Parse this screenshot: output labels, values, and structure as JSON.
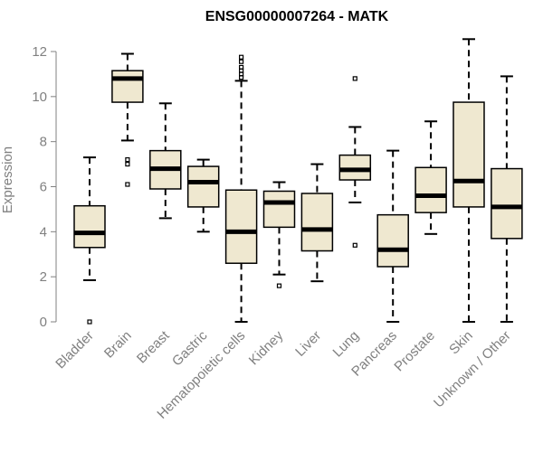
{
  "chart_data": {
    "type": "boxplot",
    "title": "ENSG00000007264 - MATK",
    "xlabel": "",
    "ylabel": "Expression",
    "ylim": [
      0,
      12
    ],
    "yticks": [
      0,
      2,
      4,
      6,
      8,
      10,
      12
    ],
    "grid": false,
    "colors": {
      "box_fill": "#efe8d0",
      "box_stroke": "#000000",
      "axis": "#808080",
      "title": "#000000"
    },
    "categories": [
      "Bladder",
      "Brain",
      "Breast",
      "Gastric",
      "Hematopoietic cells",
      "Kidney",
      "Liver",
      "Lung",
      "Pancreas",
      "Prostate",
      "Skin",
      "Unknown / Other"
    ],
    "boxes": [
      {
        "label": "Bladder",
        "min": 1.85,
        "q1": 3.3,
        "median": 3.95,
        "q3": 5.15,
        "max": 7.3,
        "outliers": [
          0.0
        ]
      },
      {
        "label": "Brain",
        "min": 8.05,
        "q1": 9.75,
        "median": 10.8,
        "q3": 11.15,
        "max": 11.9,
        "outliers": [
          7.2,
          7.0,
          6.1
        ]
      },
      {
        "label": "Breast",
        "min": 4.6,
        "q1": 5.9,
        "median": 6.8,
        "q3": 7.6,
        "max": 9.7,
        "outliers": []
      },
      {
        "label": "Gastric",
        "min": 4.0,
        "q1": 5.1,
        "median": 6.2,
        "q3": 6.9,
        "max": 7.2,
        "outliers": []
      },
      {
        "label": "Hematopoietic cells",
        "min": 0.0,
        "q1": 2.6,
        "median": 4.0,
        "q3": 5.85,
        "max": 10.7,
        "outliers": [
          10.85,
          11.0,
          11.15,
          11.3,
          11.55,
          11.75
        ]
      },
      {
        "label": "Kidney",
        "min": 2.1,
        "q1": 4.2,
        "median": 5.3,
        "q3": 5.8,
        "max": 6.2,
        "outliers": [
          1.6
        ]
      },
      {
        "label": "Liver",
        "min": 1.8,
        "q1": 3.15,
        "median": 4.1,
        "q3": 5.7,
        "max": 7.0,
        "outliers": []
      },
      {
        "label": "Lung",
        "min": 5.3,
        "q1": 6.3,
        "median": 6.75,
        "q3": 7.4,
        "max": 8.65,
        "outliers": [
          10.8,
          3.4
        ]
      },
      {
        "label": "Pancreas",
        "min": 0.0,
        "q1": 2.45,
        "median": 3.2,
        "q3": 4.75,
        "max": 7.6,
        "outliers": []
      },
      {
        "label": "Prostate",
        "min": 3.9,
        "q1": 4.85,
        "median": 5.6,
        "q3": 6.85,
        "max": 8.9,
        "outliers": []
      },
      {
        "label": "Skin",
        "min": 0.0,
        "q1": 5.1,
        "median": 6.25,
        "q3": 9.75,
        "max": 12.55,
        "outliers": []
      },
      {
        "label": "Unknown / Other",
        "min": 0.0,
        "q1": 3.7,
        "median": 5.1,
        "q3": 6.8,
        "max": 10.9,
        "outliers": []
      }
    ]
  }
}
